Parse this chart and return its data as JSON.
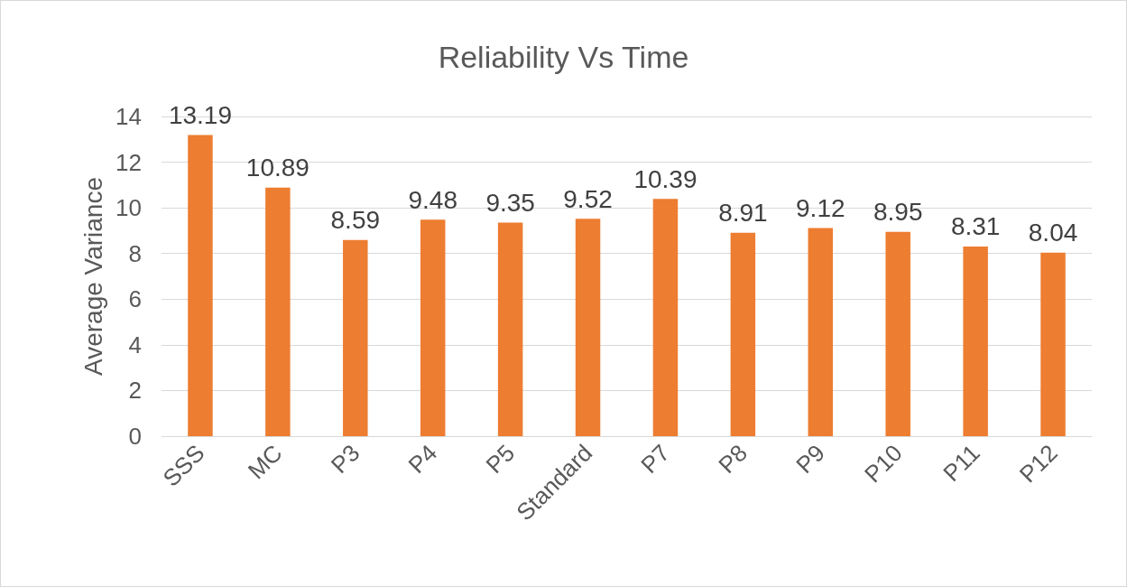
{
  "chart_data": {
    "type": "bar",
    "title": "Reliability Vs Time",
    "ylabel": "Average Variance",
    "categories": [
      "SSS",
      "MC",
      "P3",
      "P4",
      "P5",
      "Standard",
      "P7",
      "P8",
      "P9",
      "P10",
      "P11",
      "P12"
    ],
    "values": [
      13.19,
      10.89,
      8.59,
      9.48,
      9.35,
      9.52,
      10.39,
      8.91,
      9.12,
      8.95,
      8.31,
      8.04
    ],
    "color": "#ed7d31",
    "ylim": [
      0,
      14
    ],
    "yticks": [
      0,
      2,
      4,
      6,
      8,
      10,
      12,
      14
    ],
    "grid": "y",
    "data_labels": true
  }
}
